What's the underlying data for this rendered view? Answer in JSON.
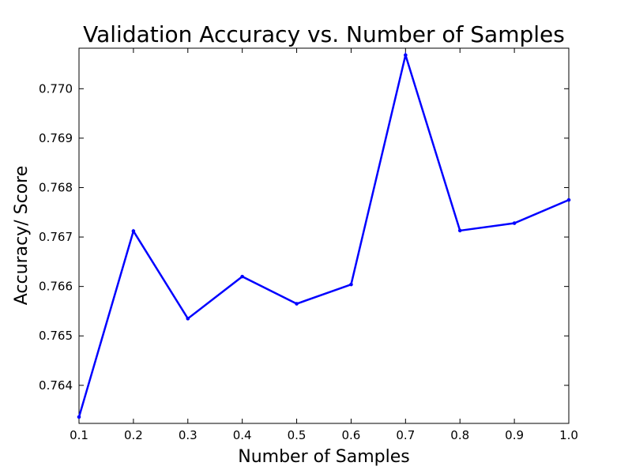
{
  "chart_data": {
    "type": "line",
    "title": "Validation Accuracy vs. Number of Samples",
    "xlabel": "Number of Samples",
    "ylabel": "Accuracy/ Score",
    "xlim": [
      0.1,
      1.0
    ],
    "ylim": [
      0.76323,
      0.77082
    ],
    "grid": false,
    "x_ticks": [
      0.1,
      0.2,
      0.3,
      0.4,
      0.5,
      0.6,
      0.7,
      0.8,
      0.9,
      1.0
    ],
    "x_tick_labels": [
      "0.1",
      "0.2",
      "0.3",
      "0.4",
      "0.5",
      "0.6",
      "0.7",
      "0.8",
      "0.9",
      "1.0"
    ],
    "y_ticks": [
      0.764,
      0.765,
      0.766,
      0.767,
      0.768,
      0.769,
      0.77
    ],
    "y_tick_labels": [
      "0.764",
      "0.765",
      "0.766",
      "0.767",
      "0.768",
      "0.769",
      "0.770"
    ],
    "series": [
      {
        "color": "#0000ff",
        "x": [
          0.1,
          0.2,
          0.3,
          0.4,
          0.5,
          0.6,
          0.7,
          0.8,
          0.9,
          1.0
        ],
        "y": [
          0.76336,
          0.76712,
          0.76535,
          0.7662,
          0.76565,
          0.76604,
          0.77068,
          0.76713,
          0.76728,
          0.76775
        ]
      }
    ]
  }
}
